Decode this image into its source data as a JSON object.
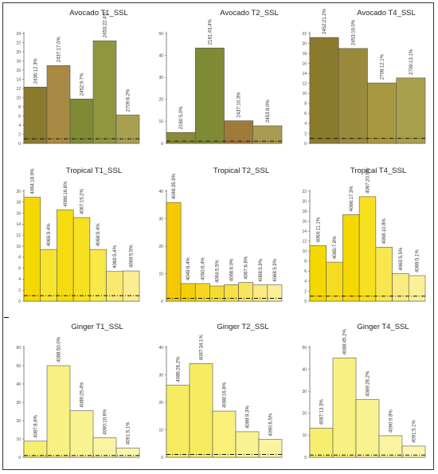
{
  "chart_data": [
    {
      "type": "bar",
      "title": "Avocado T1_SSL",
      "ylim": [
        0,
        24
      ],
      "yticks": [
        0,
        2,
        4,
        6,
        8,
        10,
        12,
        14,
        16,
        18,
        20,
        22,
        24
      ],
      "values": [
        12.3,
        17.0,
        9.7,
        22.4,
        6.2
      ],
      "labels": [
        "2436:12.3%",
        "2437:17.0%",
        "2452:9.7%",
        "2453:22.4%",
        "2709:6.2%"
      ],
      "colors": [
        "#8a7a2c",
        "#a88a44",
        "#7f8a35",
        "#8f963e",
        "#a8a050"
      ],
      "threshold": 1
    },
    {
      "type": "bar",
      "title": "Avocado T2_SSL",
      "ylim": [
        0,
        50
      ],
      "yticks": [
        0,
        10,
        20,
        30,
        40,
        50
      ],
      "values": [
        5.0,
        43.4,
        10.3,
        8.0
      ],
      "labels": [
        "2160:5.0%",
        "2181:43.4%",
        "2437:10.3%",
        "2453:8.0%"
      ],
      "colors": [
        "#8a8a3a",
        "#7f8a35",
        "#a07a3a",
        "#a89a50"
      ],
      "threshold": 1
    },
    {
      "type": "bar",
      "title": "Avocado T4_SSL",
      "ylim": [
        0,
        22
      ],
      "yticks": [
        0,
        2,
        4,
        6,
        8,
        10,
        12,
        14,
        16,
        18,
        20,
        22
      ],
      "values": [
        21.2,
        19.0,
        12.1,
        13.1
      ],
      "labels": [
        "2452:21.2%",
        "2453:19.0%",
        "2708:12.1%",
        "2709:13.1%"
      ],
      "colors": [
        "#8a7a2c",
        "#9a8a3c",
        "#a89840",
        "#a8a04c"
      ],
      "threshold": 1
    },
    {
      "type": "bar",
      "title": "Tropical T1_SSL",
      "ylim": [
        0,
        20
      ],
      "yticks": [
        0,
        2,
        4,
        6,
        8,
        10,
        12,
        14,
        16,
        18,
        20
      ],
      "values": [
        18.9,
        9.4,
        16.6,
        15.2,
        9.4,
        5.4,
        5.5
      ],
      "labels": [
        "4064:18.9%",
        "4065:9.4%",
        "4066:16.6%",
        "4067:15.2%",
        "4068:9.4%",
        "4069:5.4%",
        "4069:5.5%"
      ],
      "colors": [
        "#f5d800",
        "#f7e430",
        "#f5dc10",
        "#f7e020",
        "#f8e848",
        "#fae870",
        "#fbee90"
      ],
      "threshold": 1
    },
    {
      "type": "bar",
      "title": "Tropical T2_SSL",
      "ylim": [
        0,
        40
      ],
      "yticks": [
        0,
        10,
        20,
        30,
        40
      ],
      "values": [
        35.9,
        6.4,
        6.4,
        5.5,
        6.0,
        6.8,
        5.9,
        5.9
      ],
      "labels": [
        "4048:35.9%",
        "4049:6.4%",
        "4050:6.4%",
        "4064:5.5%",
        "4066:6.0%",
        "4067:6.8%",
        "4068:5.9%",
        "4068:5.9%"
      ],
      "colors": [
        "#f5c800",
        "#f5d000",
        "#f6d820",
        "#f7dc30",
        "#f8e040",
        "#f9e460",
        "#faea80",
        "#fbee98"
      ],
      "threshold": 1
    },
    {
      "type": "bar",
      "title": "Tropical T4_SSL",
      "ylim": [
        0,
        22
      ],
      "yticks": [
        0,
        2,
        4,
        6,
        8,
        10,
        12,
        14,
        16,
        18,
        20,
        22
      ],
      "values": [
        11.1,
        7.8,
        17.3,
        20.9,
        10.8,
        5.5,
        5.1
      ],
      "labels": [
        "4064:11.1%",
        "4065:7.8%",
        "4066:17.3%",
        "4067:20.9%",
        "4068:10.8%",
        "4069:5.5%",
        "4069:5.1%"
      ],
      "colors": [
        "#f5d800",
        "#f6dc20",
        "#f5d800",
        "#f7e020",
        "#f8e650",
        "#faec80",
        "#fbf09a"
      ],
      "threshold": 1
    },
    {
      "type": "bar",
      "title": "Ginger T1_SSL",
      "ylim": [
        0,
        60
      ],
      "yticks": [
        0,
        10,
        20,
        30,
        40,
        50,
        60
      ],
      "values": [
        8.8,
        50.0,
        25.4,
        10.6,
        5.1
      ],
      "labels": [
        "4087:8.8%",
        "4088:50.0%",
        "4089:25.4%",
        "4090:10.6%",
        "4091:5.1%"
      ],
      "colors": [
        "#f7ee70",
        "#f8f080",
        "#f9f290",
        "#faf4a0",
        "#fbf6b0"
      ],
      "threshold": 1
    },
    {
      "type": "bar",
      "title": "Ginger T2_SSL",
      "ylim": [
        0,
        40
      ],
      "yticks": [
        0,
        10,
        20,
        30,
        40
      ],
      "values": [
        26.2,
        34.1,
        16.8,
        9.3,
        6.5
      ],
      "labels": [
        "4086:26.2%",
        "4087:34.1%",
        "4088:16.8%",
        "4089:9.3%",
        "4090:6.5%"
      ],
      "colors": [
        "#f7ec60",
        "#f7ec60",
        "#f8f078",
        "#f9f290",
        "#faf4a0"
      ],
      "threshold": 1
    },
    {
      "type": "bar",
      "title": "Ginger T4_SSL",
      "ylim": [
        0,
        50
      ],
      "yticks": [
        0,
        10,
        20,
        30,
        40,
        50
      ],
      "values": [
        13.3,
        45.2,
        26.2,
        9.8,
        5.1
      ],
      "labels": [
        "4087:13.3%",
        "4088:45.2%",
        "4089:26.2%",
        "4090:9.8%",
        "4091:5.1%"
      ],
      "colors": [
        "#f7ee70",
        "#f8f080",
        "#f9f290",
        "#faf4a0",
        "#fbf6b0"
      ],
      "threshold": 1
    }
  ]
}
